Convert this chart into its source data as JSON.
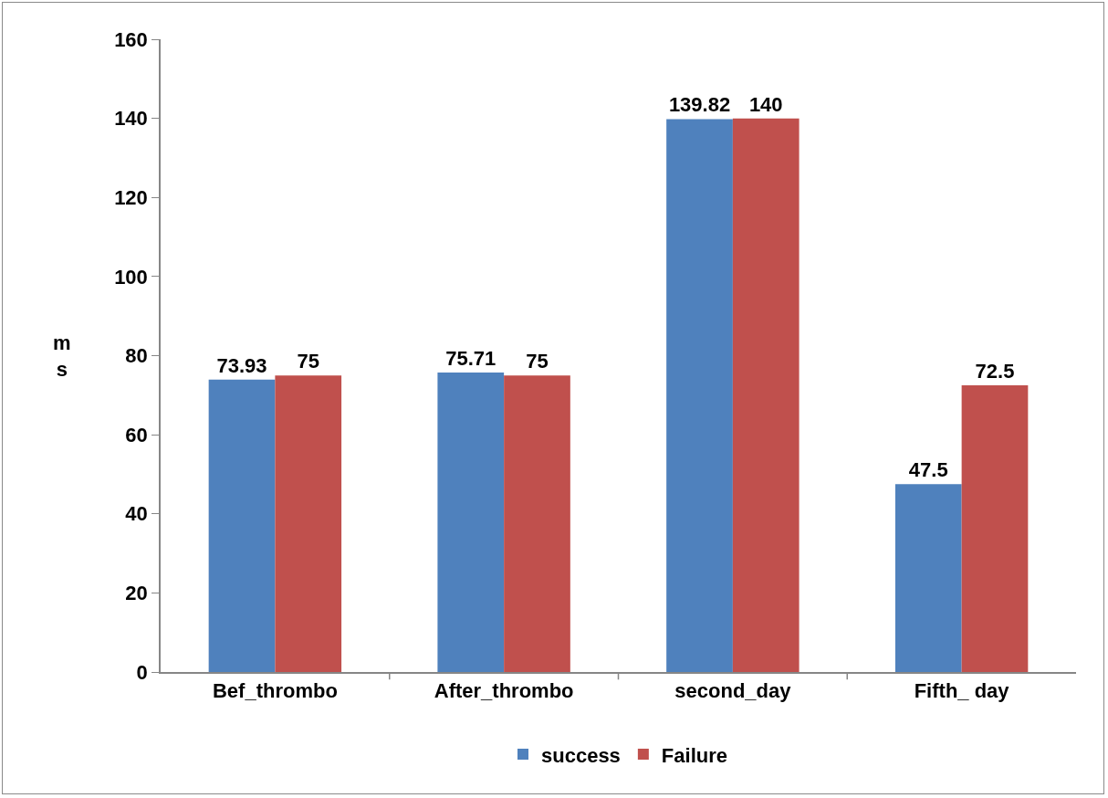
{
  "chart_data": {
    "type": "bar",
    "ylabel": "ms",
    "categories": [
      "Bef_thrombo",
      "After_thrombo",
      "second_day",
      "Fifth_ day"
    ],
    "series": [
      {
        "name": "success",
        "color": "#4f81bd",
        "values": [
          73.93,
          75.71,
          139.82,
          47.5
        ]
      },
      {
        "name": "Failure",
        "color": "#c0504d",
        "values": [
          75,
          75,
          140,
          72.5
        ]
      }
    ],
    "ylim": [
      0,
      160
    ],
    "yticks": [
      0,
      20,
      40,
      60,
      80,
      100,
      120,
      140,
      160
    ],
    "grid": false,
    "legend": "bottom",
    "data_labels": true
  }
}
